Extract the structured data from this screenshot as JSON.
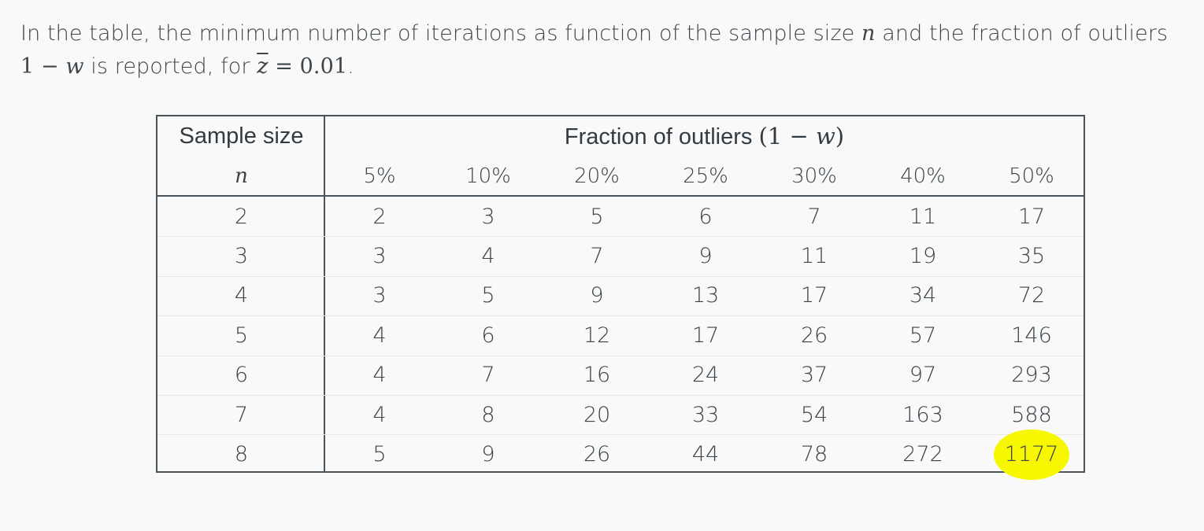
{
  "intro": {
    "part1": "In the table, the minimum number of iterations as function of the sample size ",
    "var_n": "n",
    "part2": " and the fraction of outliers",
    "expr_one_minus_w": "1 − ",
    "var_w": "w",
    "part3": " is reported, for ",
    "var_z": "z",
    "equals_value": " = 0.01",
    "end": "."
  },
  "table": {
    "header_sample_size": "Sample size",
    "header_n": "n",
    "header_fraction": "Fraction of outliers ",
    "header_fraction_expr_open": "(1 − ",
    "header_fraction_expr_w": "w",
    "header_fraction_expr_close": ")",
    "columns": [
      "5%",
      "10%",
      "20%",
      "25%",
      "30%",
      "40%",
      "50%"
    ],
    "rows": [
      {
        "n": "2",
        "values": [
          "2",
          "3",
          "5",
          "6",
          "7",
          "11",
          "17"
        ]
      },
      {
        "n": "3",
        "values": [
          "3",
          "4",
          "7",
          "9",
          "11",
          "19",
          "35"
        ]
      },
      {
        "n": "4",
        "values": [
          "3",
          "5",
          "9",
          "13",
          "17",
          "34",
          "72"
        ]
      },
      {
        "n": "5",
        "values": [
          "4",
          "6",
          "12",
          "17",
          "26",
          "57",
          "146"
        ]
      },
      {
        "n": "6",
        "values": [
          "4",
          "7",
          "16",
          "24",
          "37",
          "97",
          "293"
        ]
      },
      {
        "n": "7",
        "values": [
          "4",
          "8",
          "20",
          "33",
          "54",
          "163",
          "588"
        ]
      },
      {
        "n": "8",
        "values": [
          "5",
          "9",
          "26",
          "44",
          "78",
          "272",
          "1177"
        ]
      }
    ],
    "highlight_color": "#f6f700"
  }
}
